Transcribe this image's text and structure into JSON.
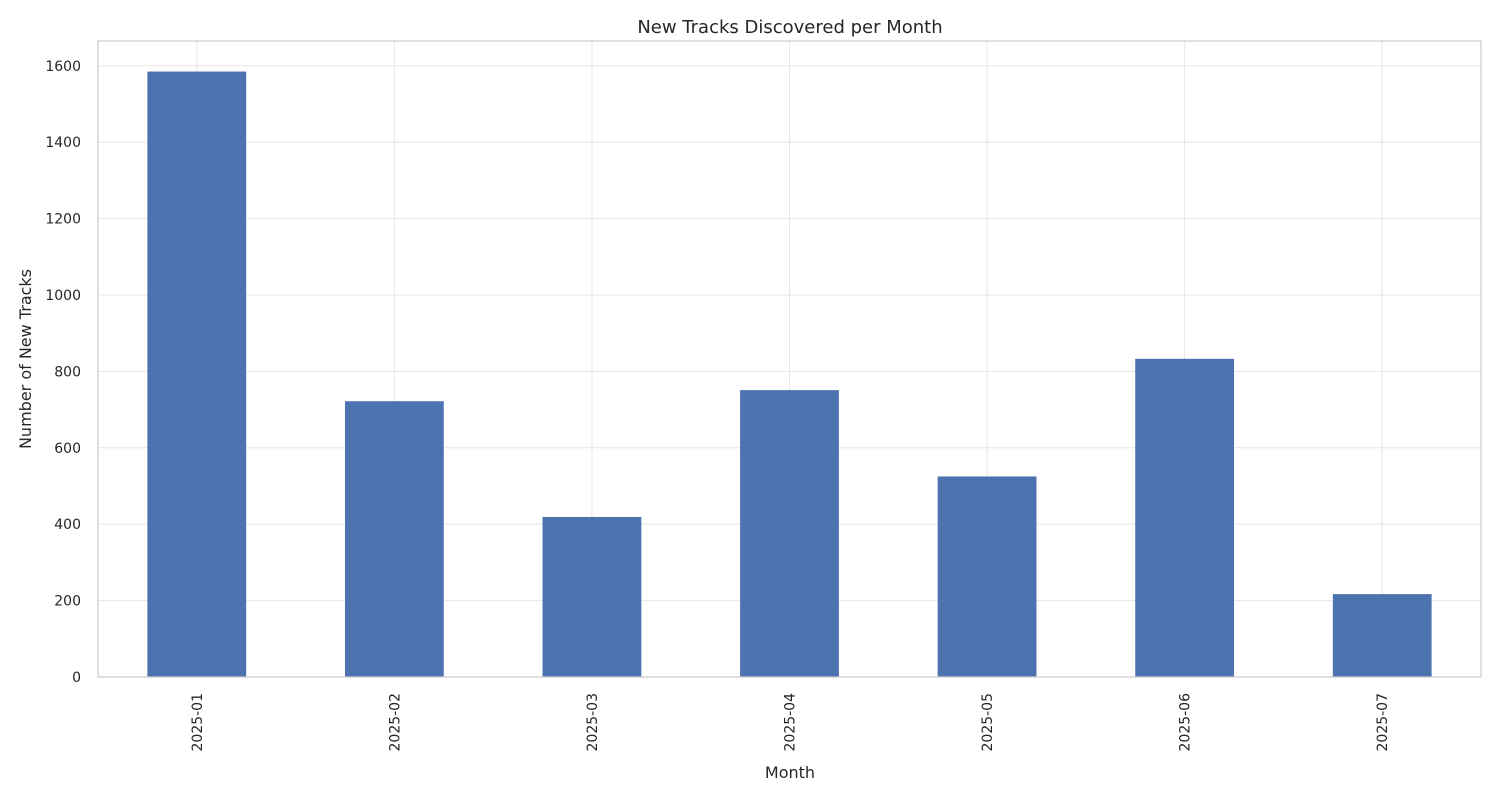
{
  "chart_data": {
    "type": "bar",
    "title": "New Tracks Discovered per Month",
    "xlabel": "Month",
    "ylabel": "Number of New Tracks",
    "categories": [
      "2025-01",
      "2025-02",
      "2025-03",
      "2025-04",
      "2025-05",
      "2025-06",
      "2025-07"
    ],
    "values": [
      1585,
      722,
      419,
      751,
      525,
      833,
      217
    ],
    "ylim": [
      0,
      1665
    ],
    "yticks": [
      "0",
      "200",
      "400",
      "600",
      "800",
      "1000",
      "1200",
      "1400",
      "1600"
    ],
    "grid": true,
    "legend": "none",
    "colors": {
      "bar": "#4c72b0",
      "grid": "#e6e6e6",
      "frame": "#cccccc",
      "text": "#262626"
    }
  }
}
